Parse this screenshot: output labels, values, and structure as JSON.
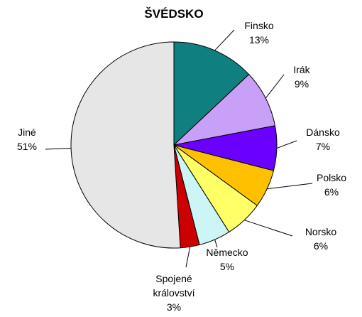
{
  "chart_data": {
    "type": "pie",
    "title": "ŠVÉDSKO",
    "categories": [
      "Finsko",
      "Irák",
      "Dánsko",
      "Polsko",
      "Norsko",
      "Německo",
      "Spojené království",
      "Jiné"
    ],
    "values": [
      13,
      9,
      7,
      6,
      6,
      5,
      3,
      51
    ],
    "value_labels": [
      "13%",
      "9%",
      "7%",
      "6%",
      "6%",
      "5%",
      "3%",
      "51%"
    ],
    "colors": [
      "#0f7f7f",
      "#c8a0f8",
      "#6a00ff",
      "#ffc000",
      "#ffff66",
      "#ccf5f5",
      "#cc0000",
      "#e6e6e6"
    ]
  }
}
